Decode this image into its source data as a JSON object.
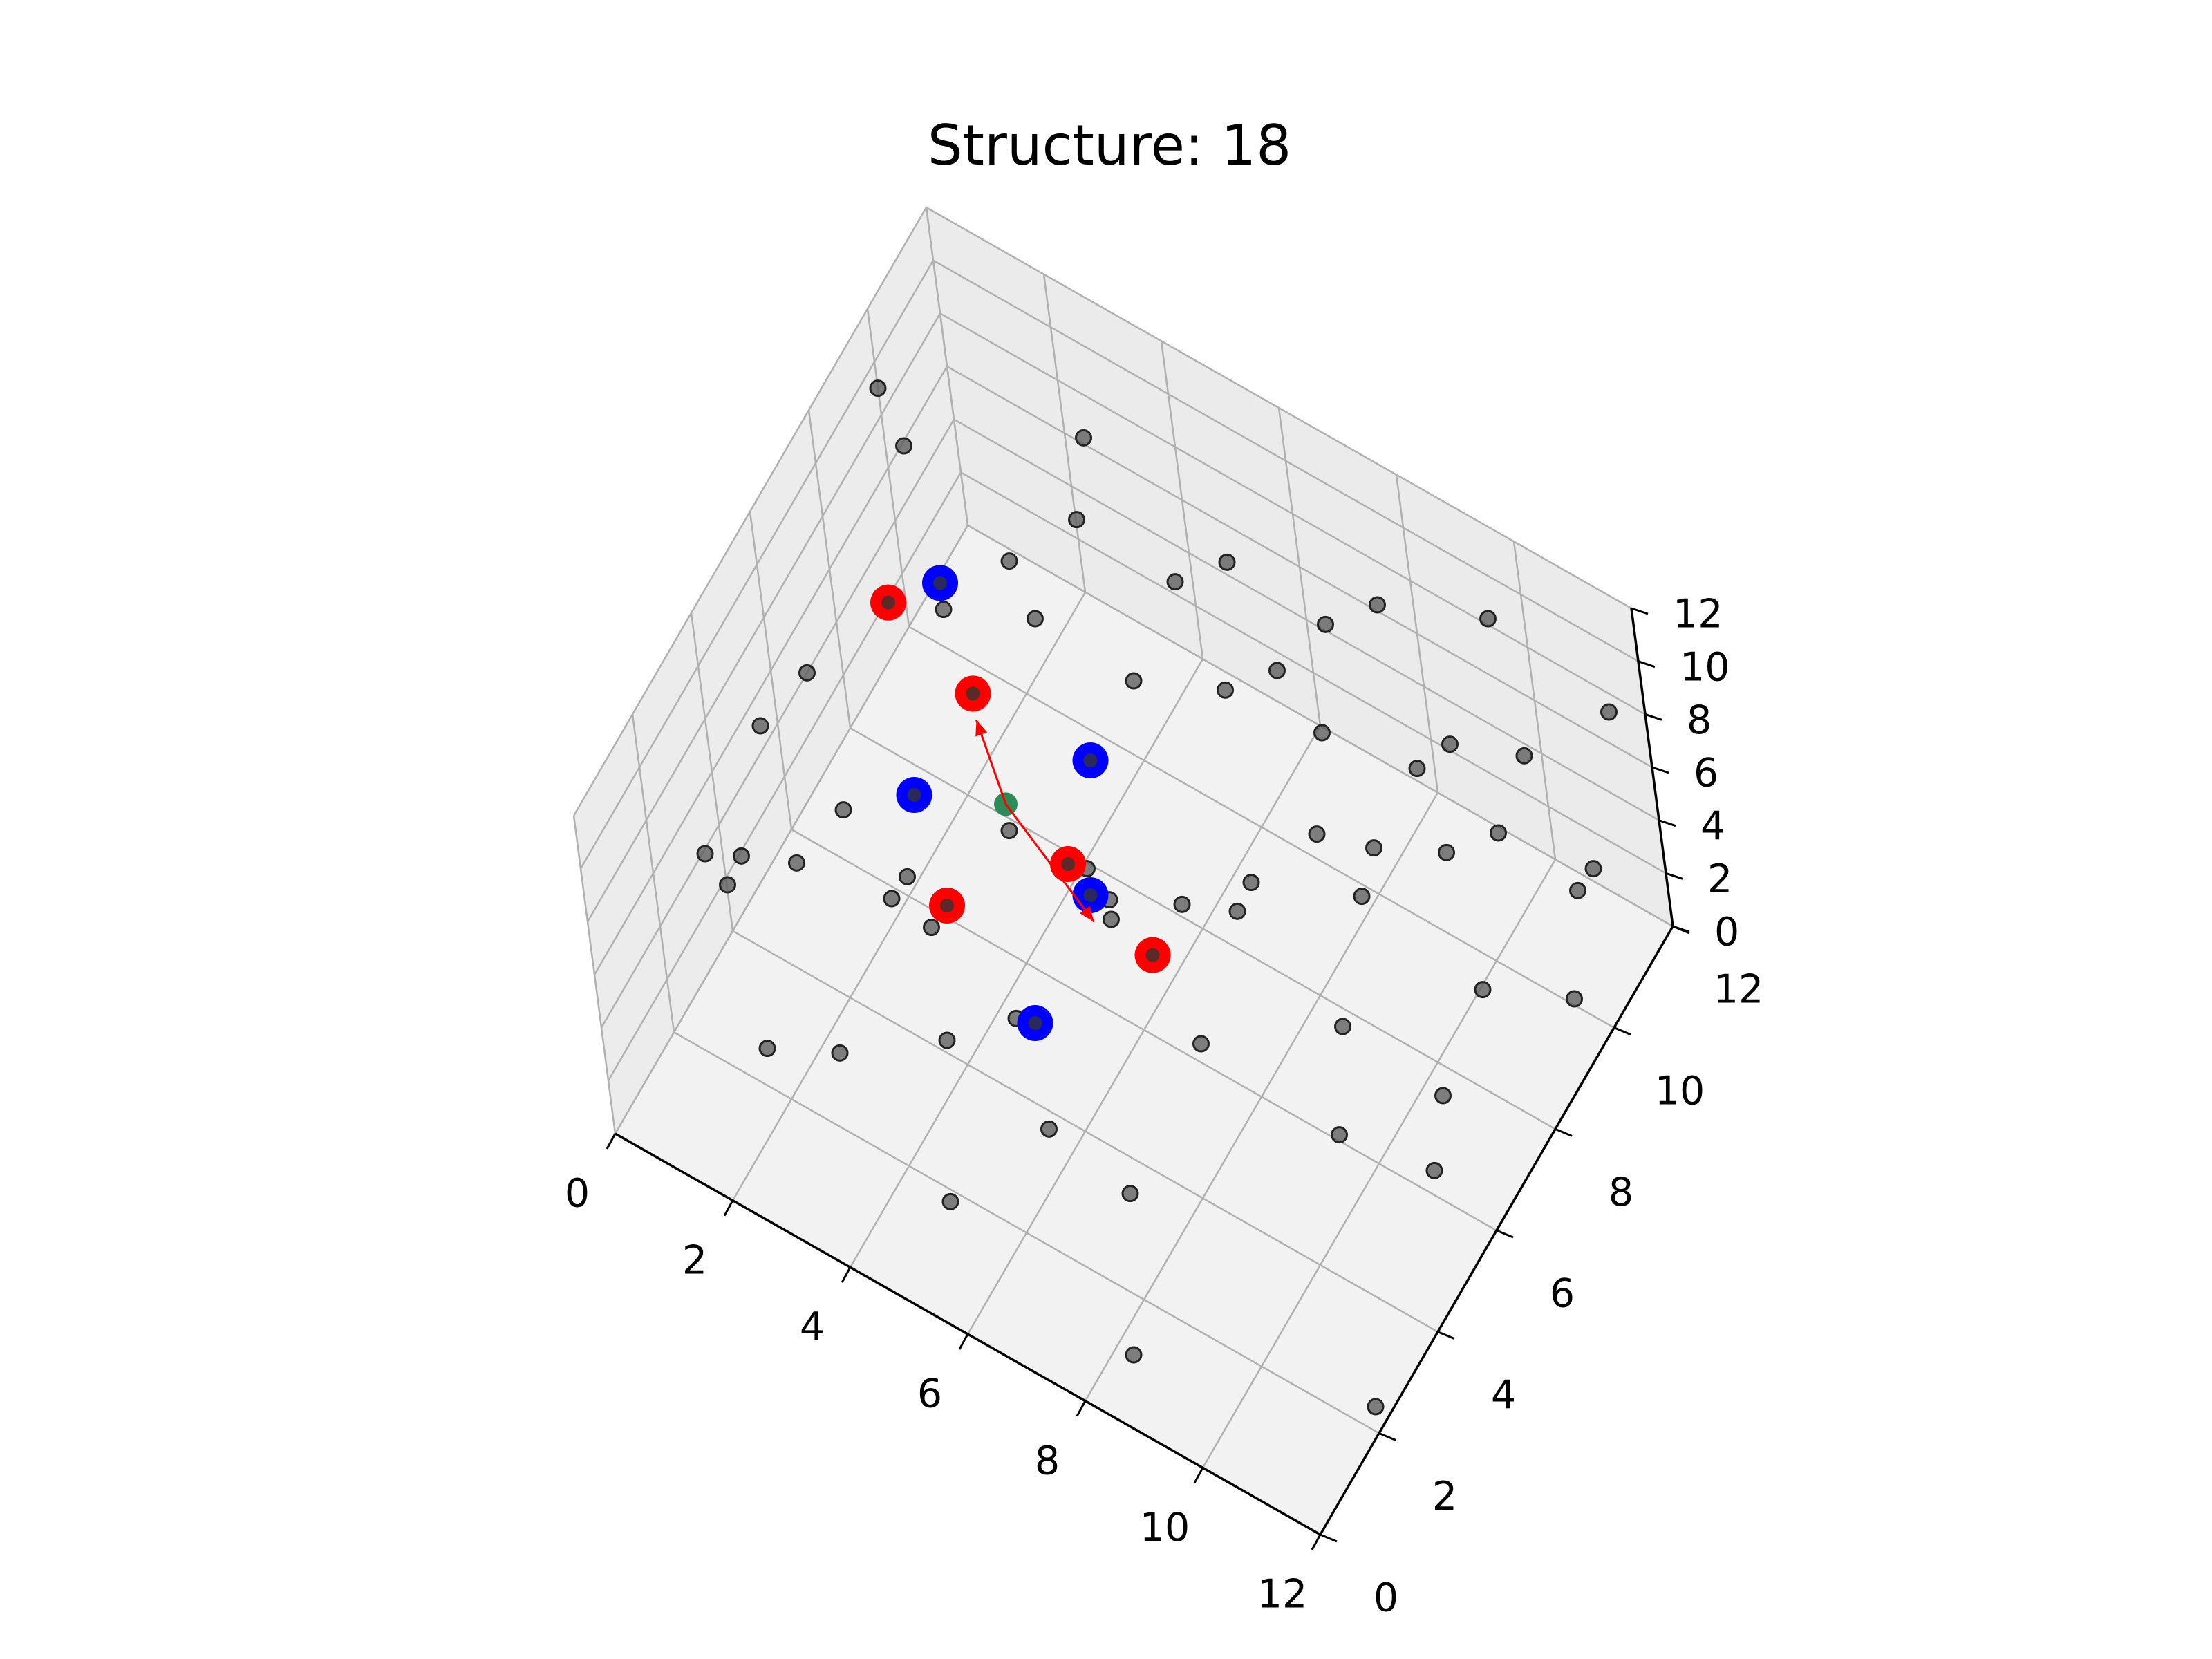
{
  "chart_data": {
    "type": "scatter",
    "projection": "3d",
    "title": "Structure: 18",
    "xlabel": "",
    "ylabel": "",
    "zlabel": "",
    "xlim": [
      0,
      12
    ],
    "ylim": [
      0,
      12
    ],
    "zlim": [
      0,
      12
    ],
    "x_ticks": [
      "0",
      "2",
      "4",
      "6",
      "8",
      "10",
      "12"
    ],
    "y_ticks": [
      "0",
      "2",
      "4",
      "6",
      "8",
      "10",
      "12"
    ],
    "z_ticks": [
      "0",
      "2",
      "4",
      "6",
      "8",
      "10",
      "12"
    ],
    "grid": true,
    "colors": {
      "background_points": "#555555",
      "red_atoms": "#ff0000",
      "blue_atoms": "#0000ff",
      "center": "#2e8b57",
      "arrow": "#ff0000",
      "pane": "#f2f2f2",
      "grid": "#b0b0b0"
    },
    "series": [
      {
        "color": "gray",
        "points": [
          [
            1,
            3,
            6
          ],
          [
            1,
            2,
            8
          ],
          [
            1,
            4,
            9
          ],
          [
            2,
            3,
            7
          ],
          [
            2,
            1,
            10
          ],
          [
            3,
            2,
            3
          ],
          [
            3,
            4,
            5
          ],
          [
            3,
            5,
            2
          ],
          [
            4,
            3,
            9
          ],
          [
            4,
            6,
            5
          ],
          [
            5,
            4,
            3
          ],
          [
            5,
            2,
            6
          ],
          [
            5,
            7,
            1
          ],
          [
            6,
            5,
            8
          ],
          [
            6,
            3,
            2
          ],
          [
            7,
            6,
            6
          ],
          [
            7,
            4,
            10
          ],
          [
            7,
            8,
            3
          ],
          [
            8,
            6,
            7
          ],
          [
            8,
            2,
            4
          ],
          [
            8,
            9,
            8
          ],
          [
            9,
            7,
            2
          ],
          [
            9,
            3,
            9
          ],
          [
            9,
            8,
            5
          ],
          [
            10,
            9,
            6
          ],
          [
            10,
            5,
            3
          ],
          [
            10,
            7,
            10
          ],
          [
            11,
            8,
            4
          ],
          [
            11,
            10,
            9
          ],
          [
            11,
            6,
            1
          ],
          [
            2,
            8,
            7
          ],
          [
            3,
            9,
            6
          ],
          [
            4,
            10,
            3
          ],
          [
            4,
            9,
            11
          ],
          [
            5,
            10,
            8
          ],
          [
            6,
            11,
            4
          ],
          [
            6,
            10,
            10
          ],
          [
            7,
            11,
            7
          ],
          [
            8,
            11,
            9
          ],
          [
            9,
            11,
            5
          ],
          [
            10,
            11,
            11
          ],
          [
            11,
            11,
            2
          ],
          [
            12,
            10,
            6
          ],
          [
            12,
            9,
            3
          ],
          [
            1,
            9,
            10
          ],
          [
            2,
            10,
            5
          ],
          [
            3,
            11,
            9
          ],
          [
            5,
            11,
            2
          ],
          [
            7,
            10,
            1
          ],
          [
            9,
            10,
            6
          ],
          [
            11,
            9,
            8
          ],
          [
            12,
            11,
            10
          ],
          [
            0,
            7,
            4
          ],
          [
            1,
            6,
            2
          ],
          [
            0,
            10,
            9
          ],
          [
            12,
            5,
            7
          ],
          [
            12,
            2,
            1
          ],
          [
            6,
            0,
            5
          ],
          [
            3,
            0,
            7
          ],
          [
            9,
            0,
            3
          ]
        ]
      },
      {
        "color": "red",
        "points": [
          [
            1,
            8,
            6
          ],
          [
            3,
            7,
            7
          ],
          [
            5,
            6,
            5
          ],
          [
            4,
            4,
            6
          ],
          [
            7,
            5,
            6
          ]
        ]
      },
      {
        "color": "blue",
        "points": [
          [
            2,
            8,
            8
          ],
          [
            5,
            7,
            7
          ],
          [
            3,
            5,
            7
          ],
          [
            6,
            5,
            7
          ],
          [
            6,
            3,
            6
          ]
        ]
      },
      {
        "color": "green",
        "points": [
          [
            4,
            6,
            6
          ]
        ]
      }
    ],
    "arrows": [
      {
        "from": [
          4,
          6,
          6
        ],
        "to": [
          6,
          5,
          6
        ]
      },
      {
        "from": [
          4,
          6,
          6
        ],
        "to": [
          3,
          7,
          6
        ]
      }
    ]
  }
}
